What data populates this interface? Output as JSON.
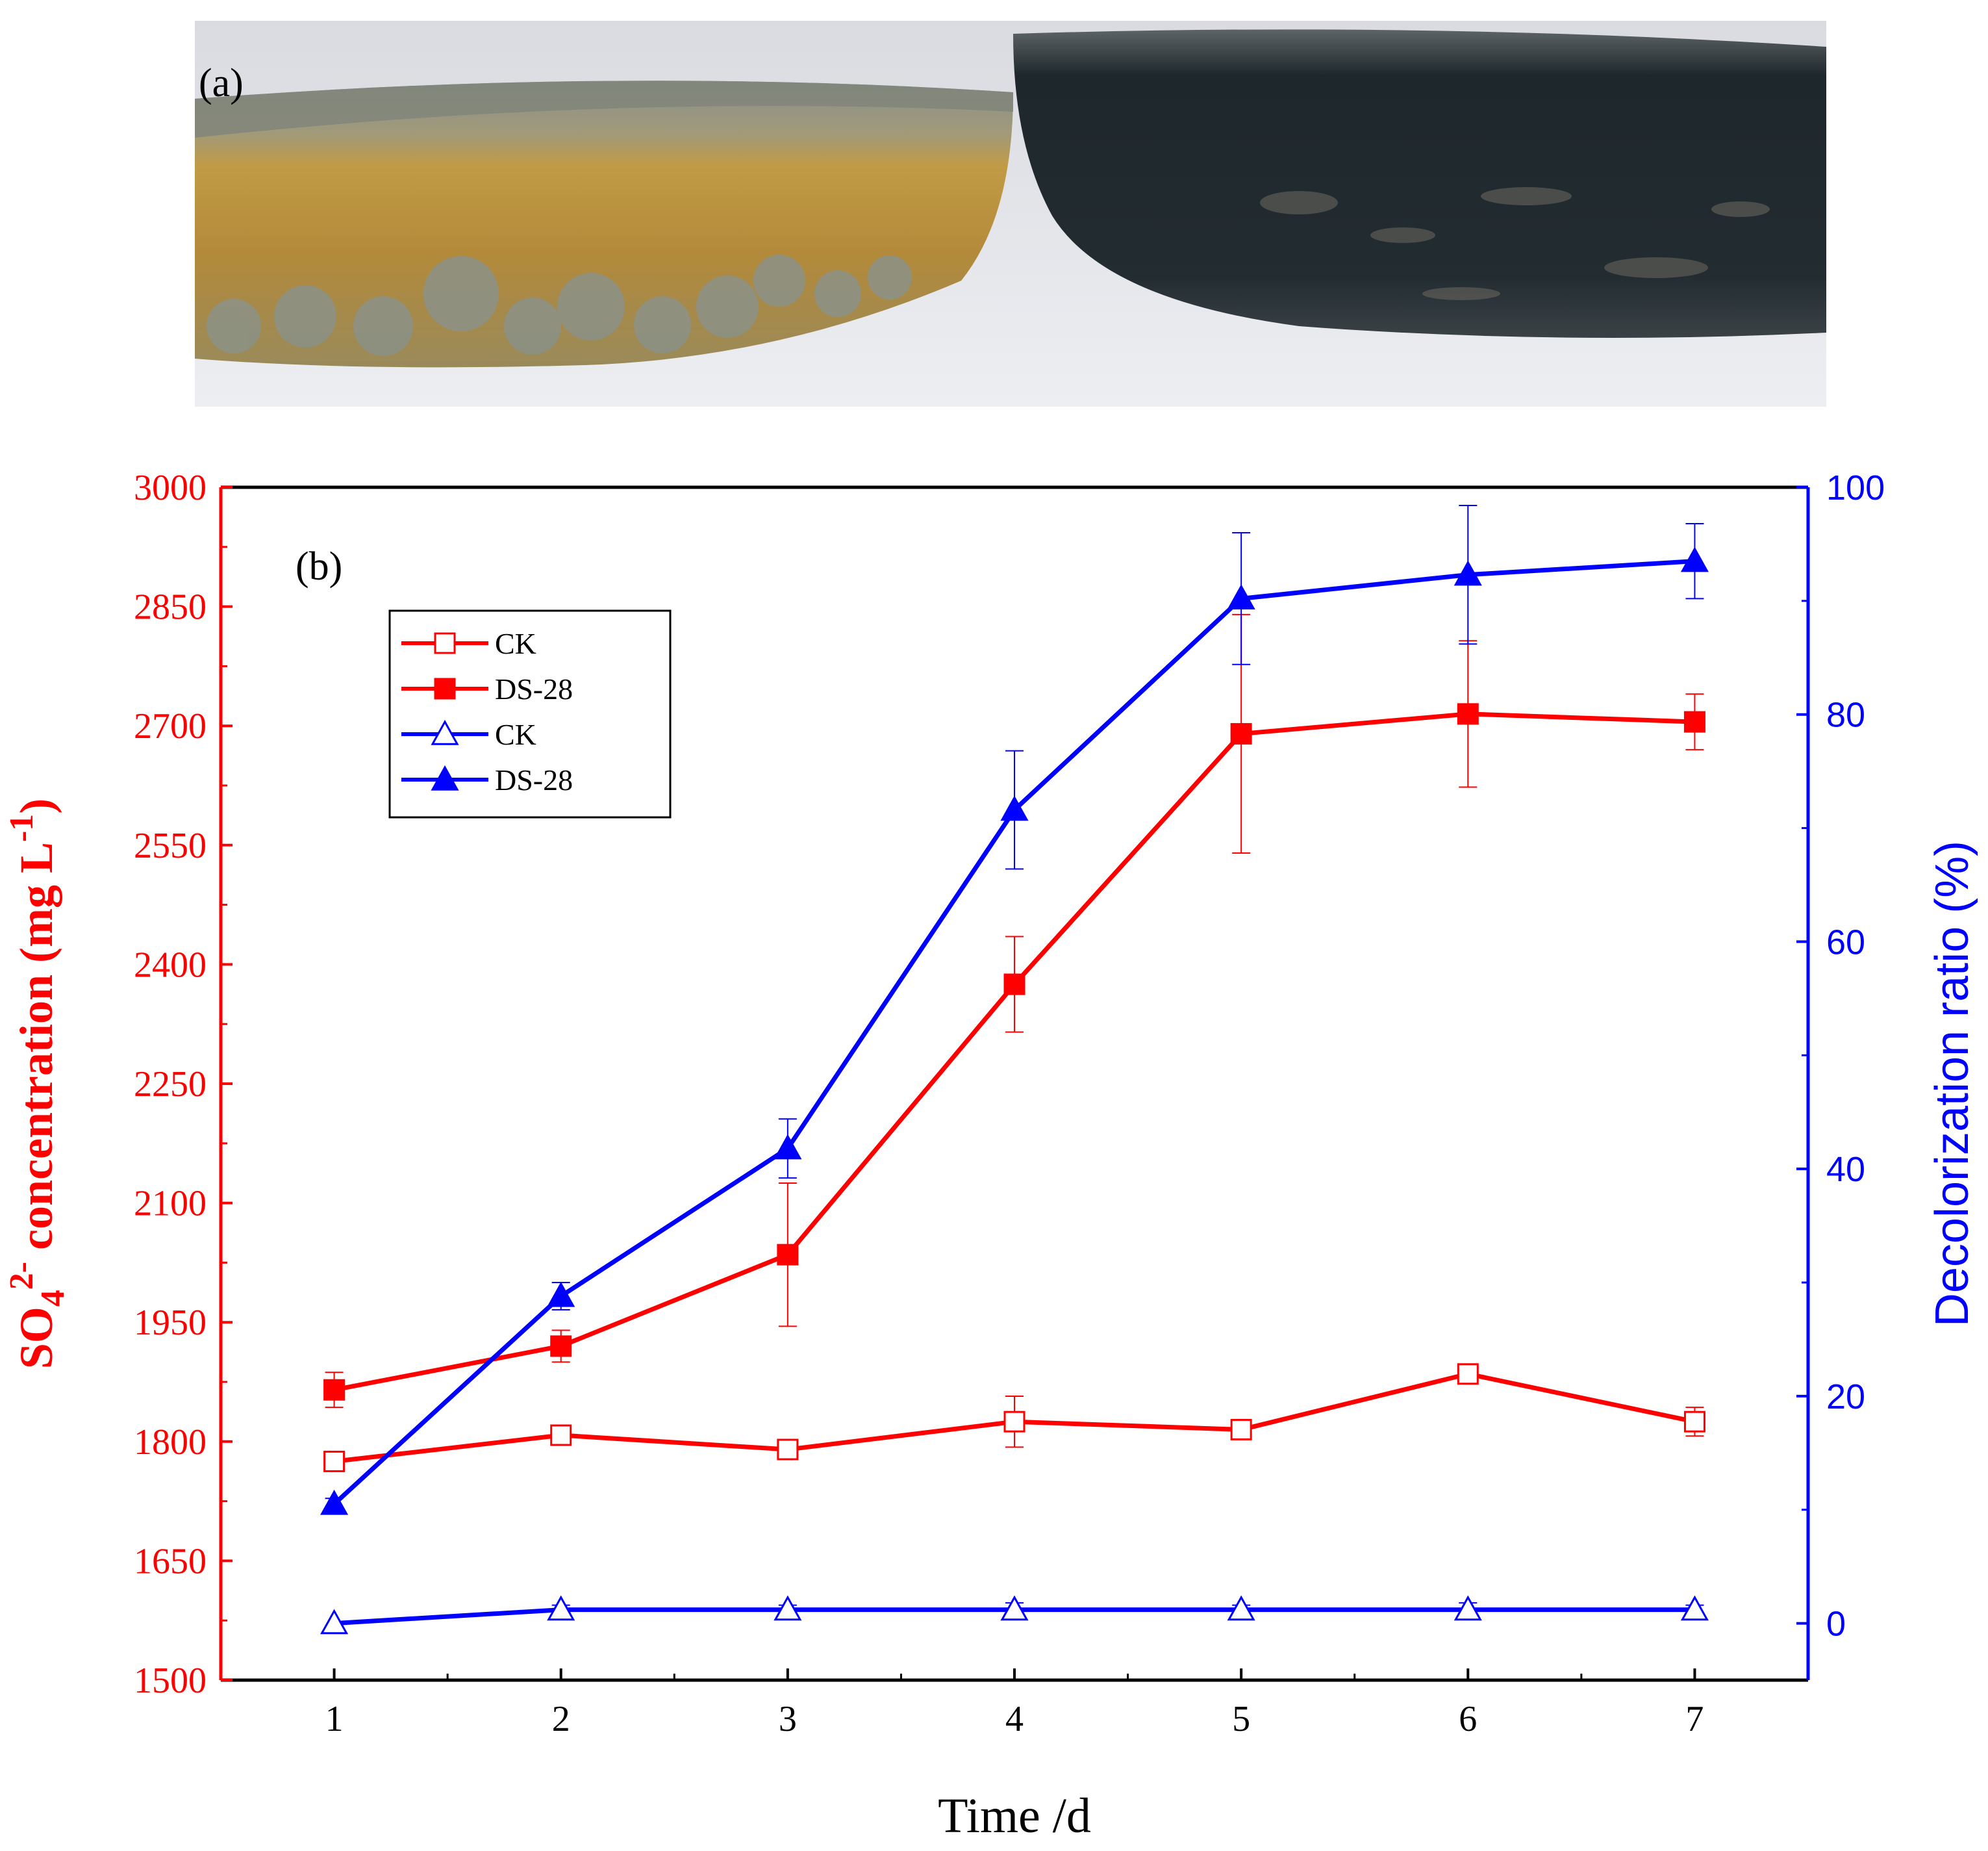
{
  "panel_a": {
    "label": "(a)",
    "photo_description_icon": "petri-dish-photo",
    "colors": {
      "left_broth": "#b8913e",
      "right_broth": "#1f2a30",
      "background": "#e6e6ea"
    }
  },
  "chart_data": {
    "type": "line",
    "panel_label": "(b)",
    "title": "",
    "xlabel": "Time /d",
    "ylabel_left": {
      "prefix": "SO",
      "sub": "4",
      "sup": "2-",
      "middle": " concentration (mg L",
      "sup2": "-1",
      "suffix": ")"
    },
    "ylabel_right": "Decolorization ratio (%)",
    "x": [
      1,
      2,
      3,
      4,
      5,
      6,
      7
    ],
    "x_ticks": [
      "1",
      "2",
      "3",
      "4",
      "5",
      "6",
      "7"
    ],
    "xlim": [
      0.5,
      7.5
    ],
    "ylim_left": [
      1500,
      3000
    ],
    "y_ticks_left": [
      "1500",
      "1650",
      "1800",
      "1950",
      "2100",
      "2250",
      "2400",
      "2550",
      "2700",
      "2850",
      "3000"
    ],
    "ylim_right": [
      -5,
      100
    ],
    "y_ticks_right": [
      "0",
      "20",
      "40",
      "60",
      "80",
      "100"
    ],
    "series": [
      {
        "name": "CK",
        "axis": "left",
        "color": "#ff0000",
        "marker": "square-open",
        "values": [
          1775,
          1808,
          1790,
          1825,
          1815,
          1885,
          1825
        ],
        "errors": [
          12,
          10,
          10,
          32,
          12,
          12,
          18
        ]
      },
      {
        "name": "DS-28",
        "axis": "left",
        "color": "#ff0000",
        "marker": "square-filled",
        "values": [
          1865,
          1920,
          2035,
          2375,
          2690,
          2715,
          2705
        ],
        "errors": [
          22,
          20,
          90,
          60,
          150,
          92,
          35
        ]
      },
      {
        "name": "CK",
        "axis": "right",
        "color": "#0000ff",
        "marker": "triangle-open",
        "values": [
          0,
          1.2,
          1.2,
          1.2,
          1.2,
          1.2,
          1.2
        ],
        "errors": [
          0,
          0.4,
          0.4,
          0.6,
          0.4,
          0.6,
          0.4
        ]
      },
      {
        "name": "DS-28",
        "axis": "right",
        "color": "#0000ff",
        "marker": "triangle-filled",
        "values": [
          10.5,
          28.8,
          41.8,
          71.6,
          90.2,
          92.3,
          93.5
        ],
        "errors": [
          0.5,
          1.2,
          2.6,
          5.2,
          5.8,
          6.1,
          3.3
        ]
      }
    ],
    "legend": {
      "placement": "upper-left",
      "entries": [
        "CK",
        "DS-28",
        "CK",
        "DS-28"
      ]
    }
  }
}
